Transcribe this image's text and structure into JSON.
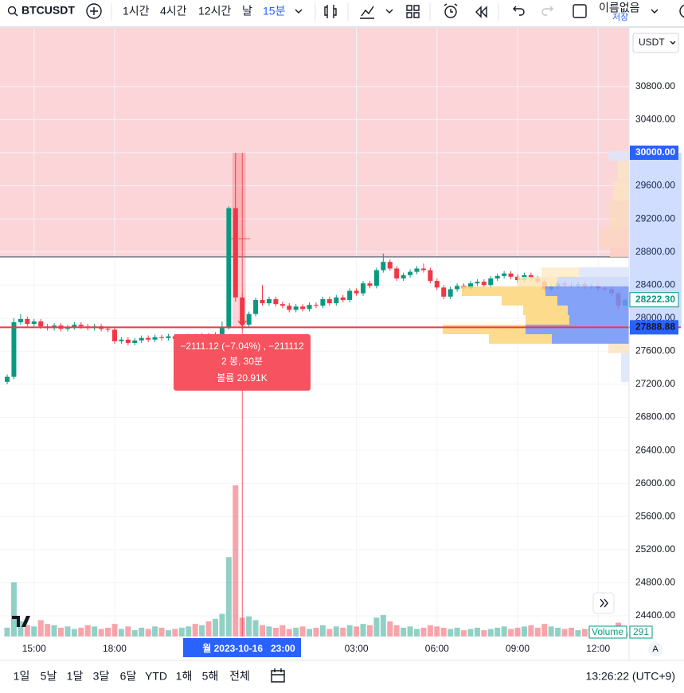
{
  "toolbar": {
    "symbol": "BTCUSDT",
    "intervals": [
      "1시간",
      "4시간",
      "12시간",
      "날",
      "15분"
    ],
    "layout_name": "이름없음",
    "save": "저장"
  },
  "chart_data": {
    "type": "candlestick",
    "currency": "USDT",
    "open": [
      27230,
      27290,
      27950,
      27990,
      27930,
      27960,
      27900,
      27880,
      27910,
      27870,
      27890,
      27920,
      27900,
      27880,
      27900,
      27870,
      27860,
      27720,
      27740,
      27700,
      27730,
      27760,
      27740,
      27770,
      27760,
      27780,
      27750,
      27760,
      27780,
      27770,
      27790,
      27780,
      27800,
      27880,
      29330,
      28250,
      27920,
      28050,
      28220,
      28180,
      28230,
      28170,
      28150,
      28100,
      28140,
      28110,
      28160,
      28150,
      28230,
      28180,
      28250,
      28220,
      28330,
      28300,
      28420,
      28390,
      28580,
      28680,
      28600,
      28480,
      28520,
      28560,
      28600,
      28580,
      28450,
      28370,
      28260,
      28350,
      28390,
      28360,
      28420,
      28440,
      28400,
      28480,
      28510,
      28540,
      28500,
      28460,
      28520,
      28480,
      28440,
      28350,
      28380,
      28420,
      28400,
      28390,
      28410,
      28380,
      28390,
      28360,
      28350,
      28300,
      28150
    ],
    "high": [
      27320,
      28000,
      28050,
      28020,
      27990,
      27990,
      27930,
      27940,
      27940,
      27920,
      27950,
      27950,
      27930,
      27930,
      27930,
      27900,
      27890,
      27770,
      27770,
      27760,
      27790,
      27790,
      27800,
      27800,
      27810,
      27810,
      27790,
      27810,
      27810,
      27820,
      27820,
      27830,
      27960,
      29350,
      30000,
      28300,
      28080,
      28250,
      28400,
      28260,
      28260,
      28200,
      28180,
      28170,
      28170,
      28190,
      28190,
      28260,
      28260,
      28280,
      28280,
      28360,
      28360,
      28450,
      28450,
      28610,
      28780,
      28710,
      28630,
      28550,
      28590,
      28630,
      28660,
      28610,
      28480,
      28400,
      28380,
      28420,
      28420,
      28450,
      28470,
      28470,
      28510,
      28540,
      28570,
      28570,
      28530,
      28550,
      28550,
      28510,
      28470,
      28410,
      28450,
      28450,
      28430,
      28440,
      28440,
      28420,
      28420,
      28390,
      28380,
      28320,
      28240
    ],
    "low": [
      27200,
      27260,
      27920,
      27900,
      27900,
      27870,
      27850,
      27850,
      27840,
      27840,
      27860,
      27870,
      27850,
      27850,
      27840,
      27830,
      27690,
      27690,
      27670,
      27670,
      27700,
      27710,
      27710,
      27730,
      27730,
      27720,
      27720,
      27730,
      27740,
      27740,
      27750,
      27750,
      27770,
      27860,
      28200,
      27860,
      27890,
      28020,
      28150,
      28150,
      28140,
      28120,
      28070,
      28070,
      28080,
      28080,
      28120,
      28120,
      28150,
      28150,
      28190,
      28190,
      28270,
      28270,
      28360,
      28360,
      28550,
      28570,
      28450,
      28450,
      28490,
      28530,
      28550,
      28420,
      28340,
      28230,
      28230,
      28320,
      28330,
      28330,
      28390,
      28370,
      28370,
      28450,
      28480,
      28470,
      28430,
      28430,
      28450,
      28410,
      28320,
      28320,
      28350,
      28370,
      28360,
      28360,
      28350,
      28350,
      28330,
      28320,
      28270,
      28100,
      28140
    ],
    "close": [
      27290,
      27950,
      27990,
      27930,
      27960,
      27900,
      27880,
      27910,
      27870,
      27890,
      27920,
      27900,
      27880,
      27900,
      27870,
      27860,
      27720,
      27740,
      27700,
      27730,
      27760,
      27740,
      27770,
      27760,
      27780,
      27750,
      27760,
      27780,
      27770,
      27790,
      27780,
      27800,
      27880,
      29330,
      28250,
      27920,
      28050,
      28220,
      28180,
      28230,
      28170,
      28150,
      28100,
      28140,
      28110,
      28160,
      28150,
      28230,
      28180,
      28250,
      28220,
      28330,
      28300,
      28420,
      28390,
      28580,
      28680,
      28600,
      28480,
      28520,
      28560,
      28600,
      28580,
      28450,
      28370,
      28260,
      28350,
      28390,
      28360,
      28420,
      28440,
      28400,
      28480,
      28510,
      28540,
      28500,
      28460,
      28520,
      28480,
      28440,
      28350,
      28380,
      28420,
      28400,
      28390,
      28410,
      28380,
      28390,
      28360,
      28350,
      28300,
      28150,
      28222.3
    ],
    "volume": [
      700,
      4300,
      1200,
      900,
      800,
      1300,
      1000,
      900,
      700,
      800,
      600,
      700,
      900,
      800,
      600,
      700,
      1000,
      600,
      800,
      500,
      700,
      600,
      800,
      700,
      500,
      600,
      700,
      800,
      1000,
      900,
      1200,
      1400,
      1800,
      6300,
      12000,
      1500,
      1600,
      1300,
      900,
      800,
      700,
      900,
      600,
      700,
      800,
      600,
      700,
      900,
      600,
      800,
      700,
      900,
      800,
      1000,
      900,
      1500,
      1700,
      1200,
      900,
      700,
      800,
      600,
      700,
      900,
      800,
      700,
      600,
      700,
      500,
      600,
      700,
      500,
      600,
      700,
      800,
      600,
      700,
      800,
      900,
      700,
      1000,
      800,
      700,
      600,
      700,
      500,
      600,
      700,
      800,
      600,
      700,
      1100,
      291
    ],
    "volume_legend": "Volume",
    "up_color": "#089981",
    "down_color": "#f23645",
    "xlim": [
      -1.07,
      92.6
    ],
    "xticks": [
      {
        "value": 4,
        "label": "15:00"
      },
      {
        "value": 16,
        "label": "18:00"
      },
      {
        "value": 52,
        "label": "03:00"
      },
      {
        "value": 64,
        "label": "06:00"
      },
      {
        "value": 76,
        "label": "09:00"
      },
      {
        "value": 88,
        "label": "12:00"
      }
    ],
    "ylim": [
      24150,
      31510
    ],
    "yticks": [
      {
        "value": 24400,
        "label": "24400.00"
      },
      {
        "value": 24800,
        "label": "24800.00"
      },
      {
        "value": 25200,
        "label": "25200.00"
      },
      {
        "value": 25600,
        "label": "25600.00"
      },
      {
        "value": 26000,
        "label": "26000.00"
      },
      {
        "value": 26400,
        "label": "26400.00"
      },
      {
        "value": 26800,
        "label": "26800.00"
      },
      {
        "value": 27200,
        "label": "27200.00"
      },
      {
        "value": 27600,
        "label": "27600.00"
      },
      {
        "value": 28000,
        "label": "28000.00"
      },
      {
        "value": 28400,
        "label": "28400.00"
      },
      {
        "value": 28800,
        "label": "28800.00"
      },
      {
        "value": 29200,
        "label": "29200.00"
      },
      {
        "value": 29600,
        "label": "29600.00"
      },
      {
        "value": 30000,
        "label": "30000.00"
      },
      {
        "value": 30400,
        "label": "30400.00"
      },
      {
        "value": 30800,
        "label": "30800.00"
      }
    ],
    "grid": true,
    "zone_line": 28740,
    "measure_high": {
      "value": 30000,
      "label": "30000.00"
    },
    "last_price": {
      "value": 28222.3,
      "label": "28222.30"
    },
    "hline": {
      "value": 27888.88,
      "label": "27888.88"
    },
    "measure": {
      "change": "−2111.12 (−7.04%) , −211112",
      "bars": "2 봉, 30분",
      "volume": "볼륨 20.91K"
    },
    "crosshair": {
      "date": "월 2023-10-16",
      "time": "23:00"
    },
    "auto_label": "A"
  },
  "bottom_bar": {
    "ranges": [
      "1일",
      "5날",
      "1달",
      "3달",
      "6달",
      "YTD",
      "1해",
      "5해",
      "전체"
    ],
    "clock": "13:26:22 (UTC+9)"
  }
}
